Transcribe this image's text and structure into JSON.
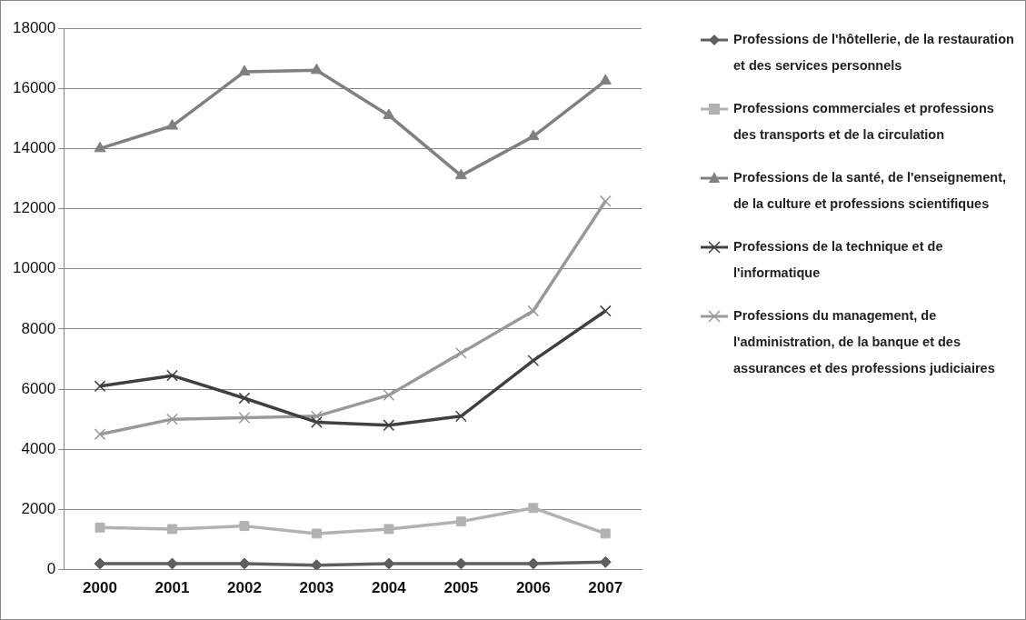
{
  "chart_data": {
    "type": "line",
    "categories": [
      "2000",
      "2001",
      "2002",
      "2003",
      "2004",
      "2005",
      "2006",
      "2007"
    ],
    "ylim": [
      0,
      18000
    ],
    "yticks": [
      0,
      2000,
      4000,
      6000,
      8000,
      10000,
      12000,
      14000,
      16000,
      18000
    ],
    "grid": "y",
    "legend": "right",
    "series": [
      {
        "name": "Professions de l'hôtellerie, de la restauration et des services personnels",
        "color": "#5f5f5f",
        "marker": "diamond",
        "values": [
          200,
          200,
          200,
          150,
          200,
          200,
          200,
          250
        ]
      },
      {
        "name": "Professions commerciales et professions des transports et de la circulation",
        "color": "#b2b2b2",
        "marker": "square",
        "values": [
          1400,
          1350,
          1450,
          1200,
          1350,
          1600,
          2050,
          1200
        ]
      },
      {
        "name": "Professions de la santé, de l'enseignement, de la culture et professions scientifiques",
        "color": "#808080",
        "marker": "triangle",
        "values": [
          14000,
          14750,
          16550,
          16600,
          15100,
          13100,
          14400,
          16250
        ]
      },
      {
        "name": "Professions de la technique et de l'informatique",
        "color": "#404040",
        "marker": "cross",
        "values": [
          6100,
          6450,
          5700,
          4900,
          4800,
          5100,
          6950,
          8600
        ]
      },
      {
        "name": "Professions du management, de l'administration, de la banque et des assurances et des professions judiciaires",
        "color": "#999999",
        "marker": "cross",
        "values": [
          4500,
          5000,
          5050,
          5100,
          5800,
          7200,
          8600,
          12250
        ]
      }
    ]
  }
}
